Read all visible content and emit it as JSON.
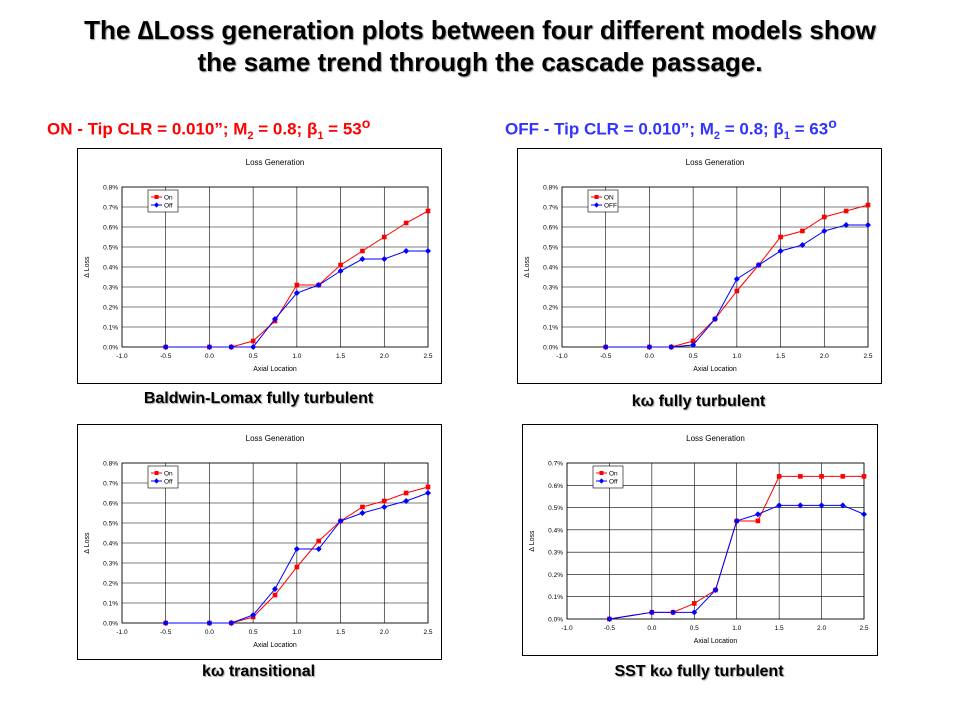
{
  "page": {
    "title_line1": "The ∆Loss generation plots between four different models show",
    "title_line2": "the same trend through the cascade passage.",
    "subtitle_on": {
      "prefix": "ON - Tip CLR = 0.010”; M",
      "m_sub": "2",
      "mid": " = 0.8; β",
      "b_sub": "1",
      "suffix": " = 53",
      "sup": "o"
    },
    "subtitle_off": {
      "prefix": "OFF - Tip CLR = 0.010”; M",
      "m_sub": "2",
      "mid": " = 0.8; β",
      "b_sub": "1",
      "suffix": " = 63",
      "sup": "o"
    }
  },
  "colors": {
    "on": "#ff0000",
    "off": "#0000ff",
    "subtitle_on": "#ff0000",
    "subtitle_off": "#3333ff"
  },
  "chart_data": [
    {
      "type": "line",
      "title": "Loss Generation",
      "caption": "Baldwin-Lomax fully turbulent",
      "xlabel": "Axial Location",
      "ylabel": "∆ Loss",
      "xlim": [
        -1.0,
        2.5
      ],
      "xticks": [
        "-1.0",
        "-0.5",
        "0.0",
        "0.5",
        "1.0",
        "1.5",
        "2.0",
        "2.5"
      ],
      "ylim": [
        0,
        0.8
      ],
      "yticks": [
        "0.0%",
        "0.1%",
        "0.2%",
        "0.3%",
        "0.4%",
        "0.5%",
        "0.6%",
        "0.7%",
        "0.8%"
      ],
      "grid": true,
      "legend_position": "top-left",
      "x": [
        -0.5,
        0.0,
        0.25,
        0.5,
        0.75,
        1.0,
        1.25,
        1.5,
        1.75,
        2.0,
        2.25,
        2.5
      ],
      "series": [
        {
          "name": "On",
          "marker": "square",
          "values": [
            0.0,
            0.0,
            0.0,
            0.03,
            0.13,
            0.31,
            0.31,
            0.41,
            0.48,
            0.55,
            0.62,
            0.68
          ]
        },
        {
          "name": "Off",
          "marker": "diamond",
          "values": [
            0.0,
            0.0,
            0.0,
            0.0,
            0.14,
            0.27,
            0.31,
            0.38,
            0.44,
            0.44,
            0.48,
            0.48
          ]
        }
      ]
    },
    {
      "type": "line",
      "title": "Loss Generation",
      "caption": "kω fully turbulent",
      "xlabel": "Axial Location",
      "ylabel": "∆ Loss",
      "xlim": [
        -1.0,
        2.5
      ],
      "xticks": [
        "-1.0",
        "-0.5",
        "0.0",
        "0.5",
        "1.0",
        "1.5",
        "2.0",
        "2.5"
      ],
      "ylim": [
        0,
        0.8
      ],
      "yticks": [
        "0.0%",
        "0.1%",
        "0.2%",
        "0.3%",
        "0.4%",
        "0.5%",
        "0.6%",
        "0.7%",
        "0.8%"
      ],
      "grid": true,
      "legend_position": "top-left",
      "x": [
        -0.5,
        0.0,
        0.25,
        0.5,
        0.75,
        1.0,
        1.25,
        1.5,
        1.75,
        2.0,
        2.25,
        2.5
      ],
      "series": [
        {
          "name": "ON",
          "marker": "square",
          "values": [
            0.0,
            0.0,
            0.0,
            0.03,
            0.14,
            0.28,
            0.41,
            0.55,
            0.58,
            0.65,
            0.68,
            0.71
          ]
        },
        {
          "name": "OFF",
          "marker": "diamond",
          "values": [
            0.0,
            0.0,
            0.0,
            0.01,
            0.14,
            0.34,
            0.41,
            0.48,
            0.51,
            0.58,
            0.61,
            0.61
          ]
        }
      ]
    },
    {
      "type": "line",
      "title": "Loss Generation",
      "caption": "kω transitional",
      "xlabel": "Axial Location",
      "ylabel": "∆ Loss",
      "xlim": [
        -1.0,
        2.5
      ],
      "xticks": [
        "-1.0",
        "-0.5",
        "0.0",
        "0.5",
        "1.0",
        "1.5",
        "2.0",
        "2.5"
      ],
      "ylim": [
        0,
        0.8
      ],
      "yticks": [
        "0.0%",
        "0.1%",
        "0.2%",
        "0.3%",
        "0.4%",
        "0.5%",
        "0.6%",
        "0.7%",
        "0.8%"
      ],
      "grid": true,
      "legend_position": "top-left",
      "x": [
        -0.5,
        0.0,
        0.25,
        0.5,
        0.75,
        1.0,
        1.25,
        1.5,
        1.75,
        2.0,
        2.25,
        2.5
      ],
      "series": [
        {
          "name": "On",
          "marker": "square",
          "values": [
            0.0,
            0.0,
            0.0,
            0.03,
            0.14,
            0.28,
            0.41,
            0.51,
            0.58,
            0.61,
            0.65,
            0.68
          ]
        },
        {
          "name": "Off",
          "marker": "diamond",
          "values": [
            0.0,
            0.0,
            0.0,
            0.04,
            0.17,
            0.37,
            0.37,
            0.51,
            0.55,
            0.58,
            0.61,
            0.65
          ]
        }
      ]
    },
    {
      "type": "line",
      "title": "Loss Generation",
      "caption": "SST kω fully turbulent",
      "xlabel": "Axial Location",
      "ylabel": "∆ Loss",
      "xlim": [
        -1.0,
        2.5
      ],
      "xticks": [
        "-1.0",
        "-0.5",
        "0.0",
        "0.5",
        "1.0",
        "1.5",
        "2.0",
        "2.5"
      ],
      "ylim": [
        0,
        0.7
      ],
      "yticks": [
        "0.0%",
        "0.1%",
        "0.2%",
        "0.3%",
        "0.4%",
        "0.5%",
        "0.6%",
        "0.7%"
      ],
      "grid": true,
      "legend_position": "top-left",
      "x": [
        -0.5,
        0.0,
        0.25,
        0.5,
        0.75,
        1.0,
        1.25,
        1.5,
        1.75,
        2.0,
        2.25,
        2.5
      ],
      "series": [
        {
          "name": "On",
          "marker": "square",
          "values": [
            0.0,
            0.03,
            0.03,
            0.07,
            0.13,
            0.44,
            0.44,
            0.64,
            0.64,
            0.64,
            0.64,
            0.64
          ]
        },
        {
          "name": "Off",
          "marker": "diamond",
          "values": [
            0.0,
            0.03,
            0.03,
            0.03,
            0.13,
            0.44,
            0.47,
            0.51,
            0.51,
            0.51,
            0.51,
            0.47
          ]
        }
      ]
    }
  ]
}
